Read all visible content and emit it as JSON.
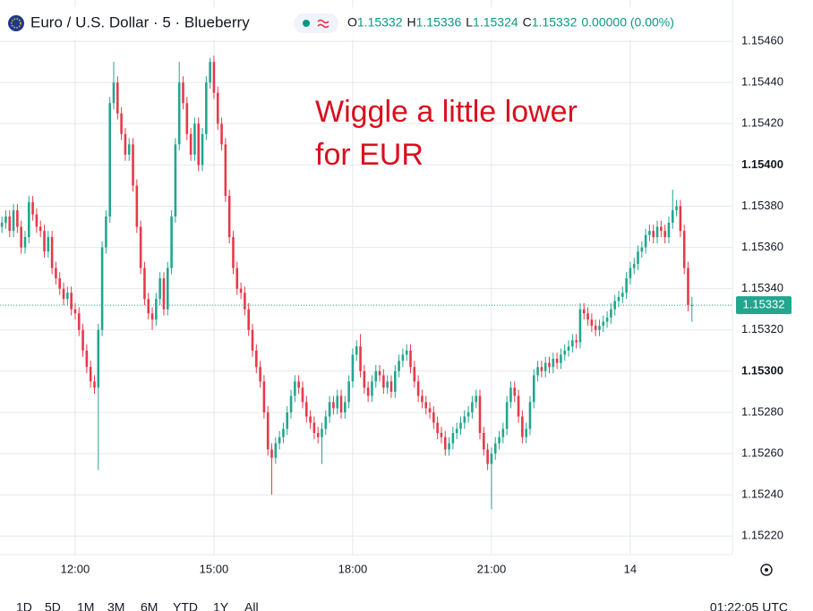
{
  "header": {
    "symbol": "Euro / U.S. Dollar · 5 · Blueberry",
    "ohlc": [
      {
        "key": "O",
        "value": 1.15332
      },
      {
        "key": "H",
        "value": 1.15336
      },
      {
        "key": "L",
        "value": 1.15324
      },
      {
        "key": "C",
        "value": 1.15332
      }
    ],
    "change": "0.00000 (0.00%)"
  },
  "chart_data": {
    "type": "candlestick",
    "annotation": [
      "Wiggle a little lower",
      "for EUR"
    ],
    "up_color": "#22a68e",
    "down_color": "#e8384a",
    "open": [
      1.1537,
      1.15372,
      1.15375,
      1.15368,
      1.15378,
      1.1537,
      1.1536,
      1.15365,
      1.15382,
      1.15376,
      1.1537,
      1.15368,
      1.15358,
      1.15365,
      1.1535,
      1.15345,
      1.1534,
      1.15335,
      1.15338,
      1.1533,
      1.15328,
      1.1532,
      1.1531,
      1.15302,
      1.15295,
      1.15292,
      1.1532,
      1.1536,
      1.15375,
      1.1543,
      1.1544,
      1.15425,
      1.15415,
      1.15405,
      1.1541,
      1.1539,
      1.1537,
      1.1535,
      1.15335,
      1.15328,
      1.15325,
      1.15335,
      1.15345,
      1.1533,
      1.1535,
      1.15375,
      1.1541,
      1.1544,
      1.1543,
      1.15415,
      1.15405,
      1.1542,
      1.154,
      1.15415,
      1.1544,
      1.1545,
      1.15435,
      1.1542,
      1.1541,
      1.15385,
      1.15365,
      1.1535,
      1.1534,
      1.15338,
      1.1533,
      1.1532,
      1.1531,
      1.15302,
      1.15295,
      1.1528,
      1.15262,
      1.15258,
      1.15265,
      1.15268,
      1.15272,
      1.1528,
      1.15288,
      1.15295,
      1.15292,
      1.15285,
      1.15278,
      1.15275,
      1.1527,
      1.15268,
      1.15272,
      1.15278,
      1.15285,
      1.15282,
      1.15288,
      1.1528,
      1.15285,
      1.15295,
      1.15308,
      1.15312,
      1.153,
      1.15292,
      1.15288,
      1.15295,
      1.153,
      1.15298,
      1.15292,
      1.15295,
      1.1529,
      1.153,
      1.15305,
      1.15308,
      1.1531,
      1.15302,
      1.15295,
      1.15288,
      1.15285,
      1.15282,
      1.1528,
      1.15275,
      1.1527,
      1.15268,
      1.15262,
      1.15265,
      1.1527,
      1.15272,
      1.15275,
      1.15278,
      1.1528,
      1.15285,
      1.15288,
      1.1527,
      1.15262,
      1.15255,
      1.1526,
      1.15265,
      1.15268,
      1.15272,
      1.15285,
      1.15292,
      1.15288,
      1.15278,
      1.15268,
      1.15272,
      1.15285,
      1.15298,
      1.15302,
      1.153,
      1.15304,
      1.15302,
      1.15306,
      1.15304,
      1.15308,
      1.1531,
      1.15312,
      1.15315,
      1.15314,
      1.1533,
      1.15328,
      1.15325,
      1.15322,
      1.1532,
      1.15322,
      1.15324,
      1.15326,
      1.1533,
      1.15334,
      1.15336,
      1.15338,
      1.15345,
      1.1535,
      1.15352,
      1.15358,
      1.1536,
      1.15366,
      1.15368,
      1.15365,
      1.1537,
      1.15368,
      1.15365,
      1.15372,
      1.15378,
      1.1538,
      1.15368,
      1.1535,
      1.15332
    ],
    "high": [
      1.15375,
      1.15378,
      1.15378,
      1.15381,
      1.15381,
      1.15373,
      1.15368,
      1.15385,
      1.15385,
      1.15379,
      1.15373,
      1.15371,
      1.15368,
      1.15368,
      1.15353,
      1.15348,
      1.15343,
      1.15341,
      1.15341,
      1.15333,
      1.15331,
      1.15323,
      1.15313,
      1.15305,
      1.15298,
      1.15323,
      1.15363,
      1.15378,
      1.15433,
      1.1545,
      1.15443,
      1.15428,
      1.15418,
      1.15413,
      1.15413,
      1.15393,
      1.15373,
      1.15353,
      1.15338,
      1.15331,
      1.15338,
      1.15348,
      1.15348,
      1.15353,
      1.15378,
      1.15413,
      1.1545,
      1.15443,
      1.15433,
      1.15418,
      1.15423,
      1.15423,
      1.15418,
      1.15443,
      1.15452,
      1.15453,
      1.15438,
      1.15423,
      1.15413,
      1.15388,
      1.15368,
      1.15353,
      1.15343,
      1.15341,
      1.15333,
      1.15323,
      1.15313,
      1.15305,
      1.15298,
      1.15283,
      1.15265,
      1.15268,
      1.15271,
      1.15275,
      1.15283,
      1.15291,
      1.15298,
      1.15298,
      1.15295,
      1.15288,
      1.15281,
      1.15278,
      1.15273,
      1.15275,
      1.15281,
      1.15288,
      1.15288,
      1.15291,
      1.15291,
      1.15288,
      1.15298,
      1.15311,
      1.15315,
      1.15318,
      1.15303,
      1.15295,
      1.15298,
      1.15303,
      1.15303,
      1.15301,
      1.15298,
      1.15298,
      1.15303,
      1.15308,
      1.15311,
      1.15313,
      1.15313,
      1.15305,
      1.15298,
      1.15291,
      1.15288,
      1.15285,
      1.15283,
      1.15278,
      1.15273,
      1.15271,
      1.15268,
      1.15273,
      1.15275,
      1.15278,
      1.15281,
      1.15283,
      1.15288,
      1.15291,
      1.15291,
      1.15273,
      1.15265,
      1.15263,
      1.15268,
      1.15271,
      1.15275,
      1.15288,
      1.15295,
      1.15295,
      1.15291,
      1.15281,
      1.15275,
      1.15288,
      1.15301,
      1.15305,
      1.15305,
      1.15307,
      1.15307,
      1.15309,
      1.15309,
      1.15311,
      1.15313,
      1.15315,
      1.15318,
      1.15318,
      1.15333,
      1.15333,
      1.15331,
      1.15328,
      1.15325,
      1.15325,
      1.15327,
      1.15329,
      1.15333,
      1.15337,
      1.15339,
      1.15341,
      1.15348,
      1.15353,
      1.15355,
      1.15361,
      1.15363,
      1.15369,
      1.15371,
      1.15371,
      1.15373,
      1.15373,
      1.15371,
      1.15375,
      1.15388,
      1.15383,
      1.15383,
      1.15371,
      1.15353,
      1.15336
    ],
    "low": [
      1.15367,
      1.15369,
      1.15365,
      1.15365,
      1.15367,
      1.15357,
      1.15357,
      1.15362,
      1.15373,
      1.15367,
      1.15365,
      1.15355,
      1.15355,
      1.15347,
      1.15342,
      1.15337,
      1.15332,
      1.15332,
      1.15327,
      1.15325,
      1.15317,
      1.15307,
      1.15299,
      1.15292,
      1.15289,
      1.15252,
      1.15317,
      1.15357,
      1.15372,
      1.15427,
      1.15422,
      1.15412,
      1.15402,
      1.15402,
      1.15387,
      1.15367,
      1.15347,
      1.15332,
      1.15325,
      1.1532,
      1.15322,
      1.15332,
      1.15327,
      1.15327,
      1.15347,
      1.15372,
      1.15407,
      1.15427,
      1.15412,
      1.15402,
      1.15402,
      1.15397,
      1.15397,
      1.15412,
      1.15437,
      1.15432,
      1.15417,
      1.15407,
      1.15382,
      1.15362,
      1.15347,
      1.15337,
      1.15335,
      1.15327,
      1.15317,
      1.15307,
      1.15299,
      1.15292,
      1.15277,
      1.15259,
      1.1524,
      1.15255,
      1.15262,
      1.15265,
      1.15269,
      1.15277,
      1.15285,
      1.15289,
      1.15282,
      1.15275,
      1.15272,
      1.15267,
      1.15265,
      1.15255,
      1.15269,
      1.15275,
      1.15279,
      1.15279,
      1.15277,
      1.15277,
      1.15282,
      1.15292,
      1.15305,
      1.15297,
      1.15289,
      1.15285,
      1.15285,
      1.15292,
      1.15295,
      1.15289,
      1.15289,
      1.15287,
      1.15287,
      1.15297,
      1.15302,
      1.15305,
      1.15299,
      1.15292,
      1.15285,
      1.15282,
      1.15279,
      1.15277,
      1.15272,
      1.15267,
      1.15265,
      1.15259,
      1.15259,
      1.15262,
      1.15267,
      1.15269,
      1.15272,
      1.15275,
      1.15277,
      1.15282,
      1.15267,
      1.15259,
      1.15252,
      1.15233,
      1.15257,
      1.15262,
      1.15265,
      1.15269,
      1.15282,
      1.15285,
      1.15275,
      1.15265,
      1.15265,
      1.15269,
      1.15282,
      1.15295,
      1.15297,
      1.15297,
      1.15299,
      1.15299,
      1.15301,
      1.15301,
      1.15305,
      1.15307,
      1.15309,
      1.15311,
      1.15311,
      1.15325,
      1.15322,
      1.15319,
      1.15317,
      1.15317,
      1.15319,
      1.15321,
      1.15323,
      1.15327,
      1.15331,
      1.15333,
      1.15335,
      1.15342,
      1.15347,
      1.15349,
      1.15355,
      1.15357,
      1.15363,
      1.15362,
      1.15362,
      1.15365,
      1.15362,
      1.15362,
      1.15369,
      1.15375,
      1.15365,
      1.15347,
      1.15329,
      1.15324
    ],
    "close": [
      1.15372,
      1.15375,
      1.15368,
      1.15378,
      1.1537,
      1.1536,
      1.15365,
      1.15382,
      1.15376,
      1.1537,
      1.15368,
      1.15358,
      1.15365,
      1.1535,
      1.15345,
      1.1534,
      1.15335,
      1.15338,
      1.1533,
      1.15328,
      1.1532,
      1.1531,
      1.15302,
      1.15295,
      1.15292,
      1.1532,
      1.1536,
      1.15375,
      1.1543,
      1.1544,
      1.15425,
      1.15415,
      1.15405,
      1.1541,
      1.1539,
      1.1537,
      1.1535,
      1.15335,
      1.15328,
      1.15325,
      1.15335,
      1.15345,
      1.1533,
      1.1535,
      1.15375,
      1.1541,
      1.1544,
      1.1543,
      1.15415,
      1.15405,
      1.1542,
      1.154,
      1.15415,
      1.1544,
      1.1545,
      1.15435,
      1.1542,
      1.1541,
      1.15385,
      1.15365,
      1.1535,
      1.1534,
      1.15338,
      1.1533,
      1.1532,
      1.1531,
      1.15302,
      1.15295,
      1.1528,
      1.15262,
      1.15258,
      1.15265,
      1.15268,
      1.15272,
      1.1528,
      1.15288,
      1.15295,
      1.15292,
      1.15285,
      1.15278,
      1.15275,
      1.1527,
      1.15268,
      1.15272,
      1.15278,
      1.15285,
      1.15282,
      1.15288,
      1.1528,
      1.15285,
      1.15295,
      1.15308,
      1.15312,
      1.153,
      1.15292,
      1.15288,
      1.15295,
      1.153,
      1.15298,
      1.15292,
      1.15295,
      1.1529,
      1.153,
      1.15305,
      1.15308,
      1.1531,
      1.15302,
      1.15295,
      1.15288,
      1.15285,
      1.15282,
      1.1528,
      1.15275,
      1.1527,
      1.15268,
      1.15262,
      1.15265,
      1.1527,
      1.15272,
      1.15275,
      1.15278,
      1.1528,
      1.15285,
      1.15288,
      1.1527,
      1.15262,
      1.15255,
      1.1526,
      1.15265,
      1.15268,
      1.15272,
      1.15285,
      1.15292,
      1.15288,
      1.15278,
      1.15268,
      1.15272,
      1.15285,
      1.15298,
      1.15302,
      1.153,
      1.15304,
      1.15302,
      1.15306,
      1.15304,
      1.15308,
      1.1531,
      1.15312,
      1.15315,
      1.15314,
      1.1533,
      1.15328,
      1.15325,
      1.15322,
      1.1532,
      1.15322,
      1.15324,
      1.15326,
      1.1533,
      1.15334,
      1.15336,
      1.15338,
      1.15345,
      1.1535,
      1.15352,
      1.15358,
      1.1536,
      1.15366,
      1.15368,
      1.15365,
      1.1537,
      1.15368,
      1.15365,
      1.15372,
      1.15378,
      1.1538,
      1.15368,
      1.1535,
      1.15332,
      1.15332
    ],
    "xlim": [
      -0.5,
      189.5
    ],
    "xticks": [
      {
        "value": 19,
        "label": "12:00"
      },
      {
        "value": 55,
        "label": "15:00"
      },
      {
        "value": 91,
        "label": "18:00"
      },
      {
        "value": 127,
        "label": "21:00"
      },
      {
        "value": 163,
        "label": "14"
      }
    ],
    "ylim": [
      1.15211,
      1.1548
    ],
    "yticks": [
      {
        "value": 1.1522,
        "label": "1.15220"
      },
      {
        "value": 1.1524,
        "label": "1.15240"
      },
      {
        "value": 1.1526,
        "label": "1.15260"
      },
      {
        "value": 1.1528,
        "label": "1.15280"
      },
      {
        "value": 1.153,
        "label": "1.15300"
      },
      {
        "value": 1.1532,
        "label": "1.15320"
      },
      {
        "value": 1.1534,
        "label": "1.15340"
      },
      {
        "value": 1.1536,
        "label": "1.15360"
      },
      {
        "value": 1.1538,
        "label": "1.15380"
      },
      {
        "value": 1.154,
        "label": "1.15400"
      },
      {
        "value": 1.1542,
        "label": "1.15420"
      },
      {
        "value": 1.1544,
        "label": "1.15440"
      },
      {
        "value": 1.1546,
        "label": "1.15460"
      }
    ],
    "grid": true
  },
  "toolbar": {
    "ranges": [
      "1D",
      "5D",
      "1M",
      "3M",
      "6M",
      "YTD",
      "1Y",
      "All"
    ],
    "clock": "01:22:05 UTC"
  }
}
